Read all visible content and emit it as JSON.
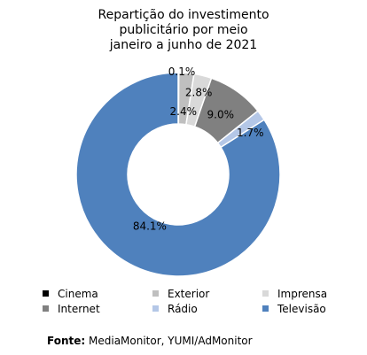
{
  "chart_data": {
    "type": "pie",
    "donut": true,
    "title_lines": [
      "Repartição do investimento",
      "publicitário por meio",
      "janeiro a junho de 2021"
    ],
    "labels": [
      "Cinema",
      "Exterior",
      "Imprensa",
      "Internet",
      "Rádio",
      "Televisão"
    ],
    "values": [
      0.1,
      2.4,
      2.8,
      9.0,
      1.7,
      84.1
    ],
    "value_labels": [
      "0.1%",
      "2.4%",
      "2.8%",
      "9.0%",
      "1.7%",
      "84.1%"
    ],
    "colors": [
      "#000000",
      "#bfbfbf",
      "#d9d9d9",
      "#808080",
      "#b4c7e7",
      "#4f81bd"
    ],
    "legend_position": "bottom"
  },
  "source": {
    "label": "Fonte:",
    "text": "MediaMonitor, YUMI/AdMonitor"
  }
}
